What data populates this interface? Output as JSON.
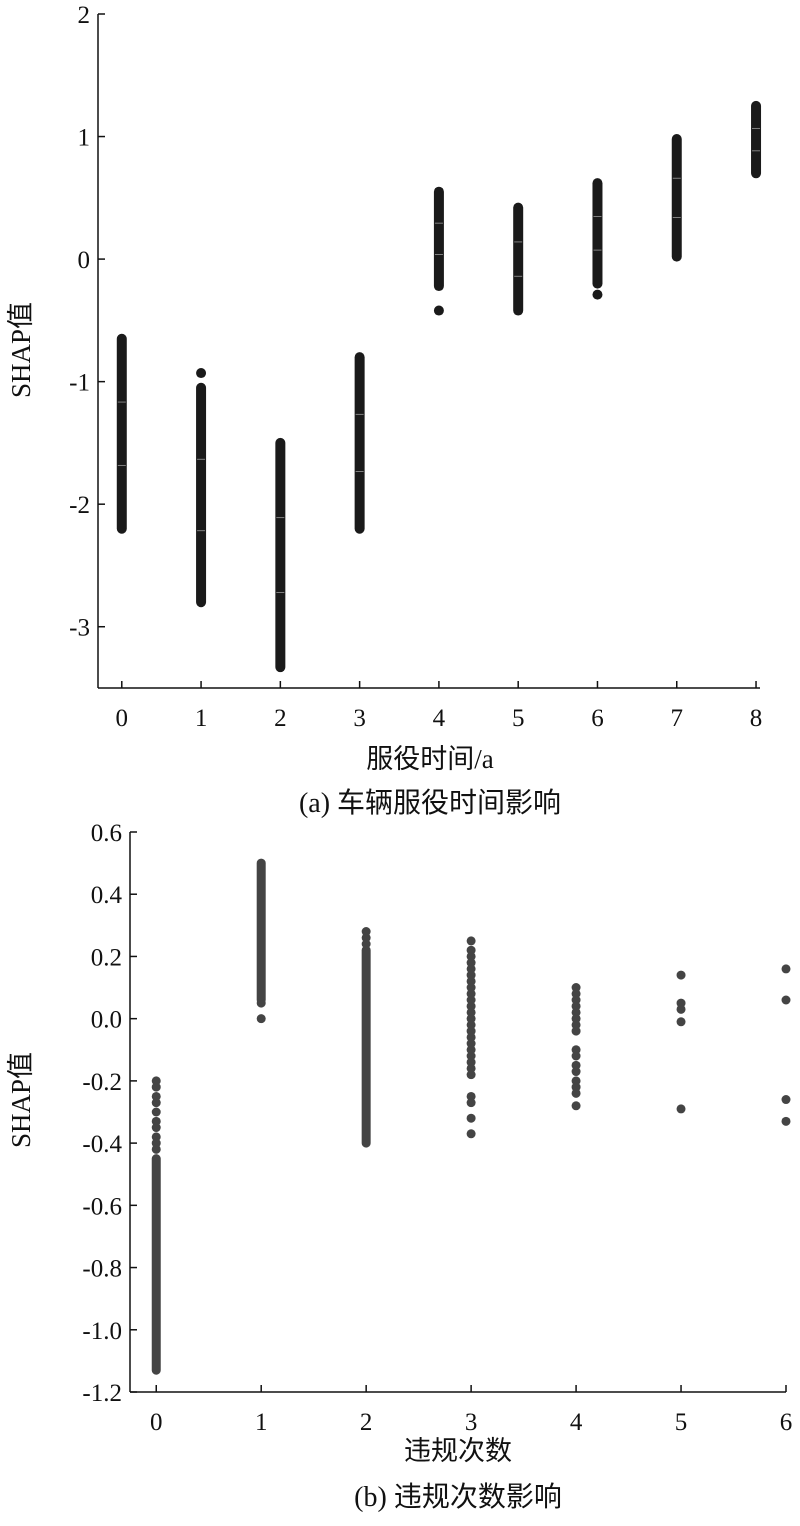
{
  "chart_data": [
    {
      "type": "scatter",
      "caption": "(a) 车辆服役时间影响",
      "xlabel": "服役时间/a",
      "ylabel": "SHAP值",
      "xlim": [
        -0.3,
        8.05
      ],
      "ylim": [
        -3.5,
        2
      ],
      "xticks": [
        "0",
        "1",
        "2",
        "3",
        "4",
        "5",
        "6",
        "7",
        "8"
      ],
      "yticks": [
        {
          "value": 2,
          "label": "2"
        },
        {
          "value": 1,
          "label": "1"
        },
        {
          "value": 0,
          "label": "0"
        },
        {
          "value": -1,
          "label": "-1"
        },
        {
          "value": -2,
          "label": "-2"
        },
        {
          "value": -3,
          "label": "-3"
        }
      ],
      "point_color": "#1a1a1a",
      "columns": [
        {
          "x": 0,
          "min": -2.2,
          "max": -0.65
        },
        {
          "x": 1,
          "min": -2.8,
          "max": -1.05,
          "outliers": [
            -0.93
          ]
        },
        {
          "x": 2,
          "min": -3.33,
          "max": -1.5
        },
        {
          "x": 3,
          "min": -2.2,
          "max": -0.8
        },
        {
          "x": 4,
          "min": -0.22,
          "max": 0.55,
          "outliers": [
            -0.42
          ]
        },
        {
          "x": 5,
          "min": -0.42,
          "max": 0.42
        },
        {
          "x": 6,
          "min": -0.2,
          "max": 0.62,
          "outliers": [
            -0.29
          ]
        },
        {
          "x": 7,
          "min": 0.02,
          "max": 0.98
        },
        {
          "x": 8,
          "min": 0.7,
          "max": 1.25
        }
      ]
    },
    {
      "type": "scatter",
      "caption": "(b) 违规次数影响",
      "xlabel": "违规次数",
      "ylabel": "SHAP值",
      "xlim": [
        -0.25,
        6.0
      ],
      "ylim": [
        -1.2,
        0.6
      ],
      "xticks": [
        "0",
        "1",
        "2",
        "3",
        "4",
        "5",
        "6"
      ],
      "yticks": [
        {
          "value": 0.6,
          "label": "0.6"
        },
        {
          "value": 0.4,
          "label": "0.4"
        },
        {
          "value": 0.2,
          "label": "0.2"
        },
        {
          "value": 0.0,
          "label": "0.0"
        },
        {
          "value": -0.2,
          "label": "-0.2"
        },
        {
          "value": -0.4,
          "label": "-0.4"
        },
        {
          "value": -0.6,
          "label": "-0.6"
        },
        {
          "value": -0.8,
          "label": "-0.8"
        },
        {
          "value": -1.0,
          "label": "-1.0"
        },
        {
          "value": -1.2,
          "label": "-1.2"
        }
      ],
      "point_color": "#444444",
      "columns": [
        {
          "x": 0,
          "dense": [
            -1.13,
            -0.45
          ],
          "points": [
            -0.2,
            -0.22,
            -0.25,
            -0.27,
            -0.3,
            -0.33,
            -0.35,
            -0.38,
            -0.4,
            -0.42
          ]
        },
        {
          "x": 1,
          "dense": [
            0.06,
            0.5
          ],
          "points": [
            0.05,
            0.0
          ]
        },
        {
          "x": 2,
          "dense": [
            -0.4,
            0.22
          ],
          "points": [
            0.24,
            0.26,
            0.28
          ]
        },
        {
          "x": 3,
          "points": [
            0.25,
            0.22,
            0.2,
            0.18,
            0.16,
            0.14,
            0.12,
            0.1,
            0.08,
            0.06,
            0.04,
            0.02,
            0.0,
            -0.02,
            -0.04,
            -0.06,
            -0.08,
            -0.1,
            -0.12,
            -0.14,
            -0.16,
            -0.18,
            -0.25,
            -0.27,
            -0.32,
            -0.37
          ]
        },
        {
          "x": 4,
          "points": [
            0.1,
            0.08,
            0.06,
            0.04,
            0.02,
            0.0,
            -0.02,
            -0.04,
            -0.1,
            -0.12,
            -0.15,
            -0.17,
            -0.2,
            -0.22,
            -0.24,
            -0.28
          ]
        },
        {
          "x": 5,
          "points": [
            0.14,
            0.05,
            0.03,
            -0.01,
            -0.29
          ]
        },
        {
          "x": 6,
          "points": [
            0.16,
            0.06,
            -0.26,
            -0.33
          ]
        }
      ]
    }
  ]
}
